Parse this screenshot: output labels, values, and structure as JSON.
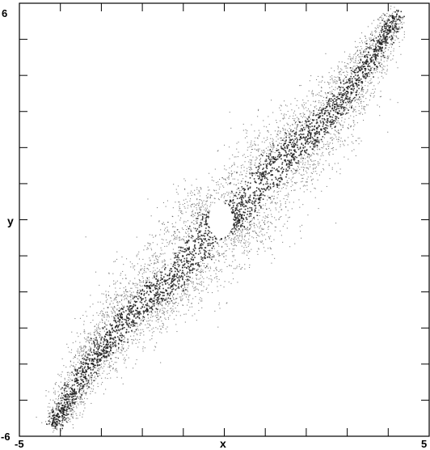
{
  "chart_data": {
    "type": "scatter",
    "title": "",
    "xlabel": "x",
    "ylabel": "y",
    "xlim": [
      -5,
      5
    ],
    "ylim": [
      -6,
      6
    ],
    "x_tick_labels": [
      "-5",
      "5"
    ],
    "y_tick_labels": [
      "6",
      "-6"
    ],
    "x_minor_ticks": [
      -4,
      -3,
      -2,
      -1,
      0,
      1,
      2,
      3,
      4
    ],
    "y_minor_ticks": [
      -5,
      -4,
      -3,
      -2,
      -1,
      0,
      1,
      2,
      3,
      4,
      5
    ],
    "grid": false,
    "legend": "none",
    "point_color": "#1a1a1a",
    "attractor": {
      "description_of_shape": "dense point cloud forming a twisted band along the diagonal",
      "spine": [
        [
          -4.2,
          -5.7
        ],
        [
          -3.3,
          -4.0
        ],
        [
          -2.3,
          -2.6
        ],
        [
          -1.3,
          -1.6
        ],
        [
          -0.3,
          -0.2
        ],
        [
          0.3,
          0.2
        ],
        [
          1.3,
          1.6
        ],
        [
          2.3,
          2.6
        ],
        [
          3.3,
          4.0
        ],
        [
          4.2,
          5.7
        ]
      ],
      "hole_center": [
        -0.1,
        0.0
      ]
    }
  }
}
